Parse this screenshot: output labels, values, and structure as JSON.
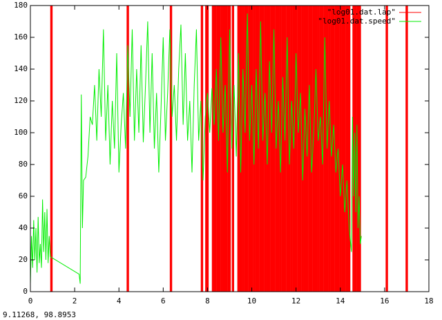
{
  "chart_data": {
    "type": "line",
    "xlim": [
      0,
      18
    ],
    "xticks": [
      0,
      2,
      4,
      6,
      8,
      10,
      12,
      14,
      16,
      18
    ],
    "ylim": [
      0,
      180
    ],
    "yticks": [
      0,
      20,
      40,
      60,
      80,
      100,
      120,
      140,
      160,
      180
    ],
    "series": [
      {
        "name": "\"log01.dat.lap\"",
        "color": "#ff0000",
        "style": "impulses",
        "x": [
          0.95,
          4.4,
          6.35,
          7.75,
          7.95,
          8.0,
          8.25,
          8.35,
          8.45,
          8.55,
          8.65,
          8.75,
          8.85,
          8.95,
          9.0,
          9.15,
          9.4,
          9.5,
          9.6,
          9.7,
          9.8,
          9.9,
          10.0,
          10.1,
          10.2,
          10.3,
          10.4,
          10.5,
          10.6,
          10.7,
          10.8,
          10.9,
          11.0,
          11.1,
          11.2,
          11.3,
          11.4,
          11.5,
          11.6,
          11.7,
          11.8,
          11.9,
          12.0,
          12.1,
          12.2,
          12.3,
          12.4,
          12.5,
          12.6,
          12.7,
          12.8,
          12.9,
          13.0,
          13.1,
          13.2,
          13.3,
          13.4,
          13.5,
          13.6,
          13.7,
          13.8,
          13.9,
          14.0,
          14.1,
          14.2,
          14.3,
          14.4,
          14.6,
          14.7,
          14.8,
          14.88,
          16.1,
          17.0
        ]
      },
      {
        "name": "\"log01.dat.speed\"",
        "color": "#00ee00",
        "style": "lines",
        "x": [
          0,
          0.05,
          0.1,
          0.15,
          0.2,
          0.25,
          0.3,
          0.35,
          0.4,
          0.45,
          0.5,
          0.55,
          0.6,
          0.65,
          0.7,
          0.75,
          0.8,
          0.85,
          0.9,
          2.2,
          2.25,
          2.3,
          2.35,
          2.4,
          2.5,
          2.6,
          2.7,
          2.8,
          2.9,
          3.0,
          3.1,
          3.2,
          3.3,
          3.4,
          3.5,
          3.6,
          3.7,
          3.8,
          3.9,
          4.0,
          4.1,
          4.2,
          4.3,
          4.4,
          4.5,
          4.6,
          4.7,
          4.8,
          4.9,
          5.0,
          5.1,
          5.2,
          5.3,
          5.4,
          5.5,
          5.6,
          5.7,
          5.8,
          5.9,
          6.0,
          6.1,
          6.2,
          6.3,
          6.4,
          6.5,
          6.6,
          6.7,
          6.8,
          6.9,
          7.0,
          7.1,
          7.2,
          7.3,
          7.4,
          7.5,
          7.6,
          7.7,
          7.8,
          7.9,
          8.0,
          8.1,
          8.2,
          8.3,
          8.4,
          8.5,
          8.6,
          8.7,
          8.8,
          8.9,
          9.0,
          9.1,
          9.2,
          9.3,
          9.4,
          9.5,
          9.6,
          9.7,
          9.8,
          9.9,
          10.0,
          10.1,
          10.2,
          10.3,
          10.4,
          10.5,
          10.6,
          10.7,
          10.8,
          10.9,
          11.0,
          11.1,
          11.2,
          11.3,
          11.4,
          11.5,
          11.6,
          11.7,
          11.8,
          11.9,
          12.0,
          12.1,
          12.2,
          12.3,
          12.4,
          12.5,
          12.6,
          12.7,
          12.8,
          12.9,
          13.0,
          13.1,
          13.2,
          13.3,
          13.4,
          13.5,
          13.6,
          13.7,
          13.8,
          13.9,
          14.0,
          14.1,
          14.2,
          14.3,
          14.4,
          14.5,
          14.55,
          14.6,
          14.65,
          14.7,
          14.75,
          14.8,
          14.85,
          14.9,
          14.95
        ],
        "values": [
          5,
          35,
          15,
          45,
          20,
          40,
          12,
          47,
          18,
          30,
          15,
          58,
          25,
          50,
          20,
          52,
          18,
          35,
          22,
          11,
          5,
          124,
          40,
          70,
          72,
          85,
          110,
          105,
          130,
          95,
          140,
          110,
          165,
          95,
          130,
          80,
          120,
          90,
          150,
          75,
          105,
          125,
          90,
          155,
          110,
          165,
          95,
          140,
          100,
          155,
          94,
          130,
          170,
          100,
          150,
          90,
          125,
          75,
          115,
          160,
          95,
          125,
          165,
          110,
          130,
          95,
          140,
          168,
          105,
          150,
          95,
          120,
          75,
          130,
          165,
          95,
          120,
          70,
          110,
          125,
          100,
          128,
          105,
          140,
          95,
          160,
          100,
          130,
          75,
          165,
          90,
          130,
          85,
          150,
          75,
          140,
          100,
          175,
          95,
          130,
          80,
          140,
          90,
          170,
          95,
          125,
          80,
          145,
          100,
          165,
          90,
          120,
          75,
          135,
          95,
          160,
          80,
          120,
          90,
          150,
          100,
          125,
          70,
          115,
          85,
          130,
          75,
          100,
          140,
          95,
          110,
          80,
          160,
          90,
          120,
          85,
          105,
          75,
          90,
          60,
          80,
          50,
          70,
          40,
          25,
          110,
          60,
          100,
          50,
          105,
          40,
          60,
          30,
          35
        ]
      }
    ],
    "legend": "top-right"
  },
  "status": "9.11268,  98.8953"
}
